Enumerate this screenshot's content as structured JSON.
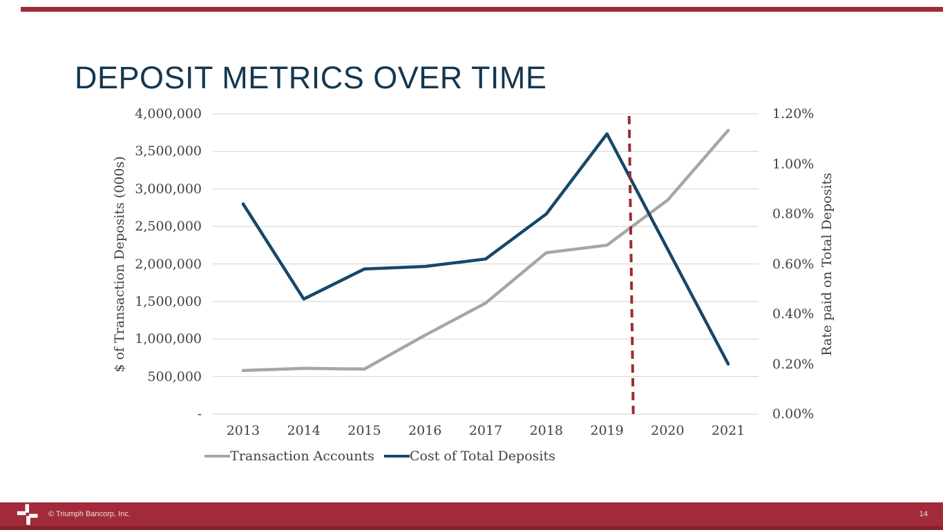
{
  "slide": {
    "title": "DEPOSIT METRICS OVER TIME"
  },
  "colors": {
    "title_navy": "#143750",
    "accent_maroon": "#9E2B36",
    "footer_maroon": "#A12B3A",
    "footer_dark_strip": "#88202E",
    "gridline_gray": "#D9D9D9",
    "axis_text_gray": "#404040",
    "series_gray": "#A6A6A6",
    "series_navy": "#17476A"
  },
  "chart_data": {
    "type": "line",
    "title": "",
    "categories": [
      "2013",
      "2014",
      "2015",
      "2016",
      "2017",
      "2018",
      "2019",
      "2020",
      "2021"
    ],
    "series": [
      {
        "name": "Transaction Accounts",
        "axis": "left",
        "color": "#A6A6A6",
        "values": [
          580000,
          610000,
          600000,
          1050000,
          1480000,
          2150000,
          2250000,
          2850000,
          3780000
        ]
      },
      {
        "name": "Cost of Total Deposits",
        "axis": "right",
        "color": "#17476A",
        "values": [
          0.84,
          0.46,
          0.58,
          0.59,
          0.62,
          0.8,
          1.12,
          0.66,
          0.2
        ]
      }
    ],
    "left_axis": {
      "title": "$ of Transaction Deposits (000s)",
      "min": 0,
      "max": 4000000,
      "tick_labels": [
        "4,000,000",
        "3,500,000",
        "3,000,000",
        "2,500,000",
        "2,000,000",
        "1,500,000",
        "1,000,000",
        "500,000",
        "-"
      ]
    },
    "right_axis": {
      "title": "Rate paid on Total Deposits",
      "min": 0,
      "max": 1.2,
      "unit": "%",
      "tick_labels": [
        "1.20%",
        "1.00%",
        "0.80%",
        "0.60%",
        "0.40%",
        "0.20%",
        "0.00%"
      ]
    },
    "annotation": {
      "type": "vertical-dashed-line",
      "x_year": 2019.4,
      "color": "#9E2B36"
    },
    "legend": {
      "position": "bottom",
      "items": [
        "Transaction Accounts",
        "Cost of Total Deposits"
      ]
    },
    "grid": "horizontal"
  },
  "footer": {
    "logo": "triumph-cross-logo",
    "copyright": "© Triumph Bancorp, Inc.",
    "page_number": "14"
  }
}
